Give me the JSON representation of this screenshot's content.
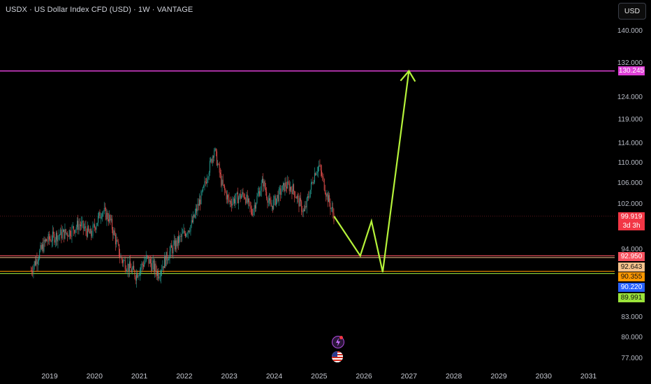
{
  "header": {
    "title": "USDX · US Dollar Index CFD (USD) · 1W · VANTAGE",
    "currency_button": "USD"
  },
  "price_axis": {
    "ticks": [
      "140.000",
      "132.000",
      "124.000",
      "119.000",
      "114.000",
      "110.000",
      "106.000",
      "102.000",
      "94.000",
      "83.000",
      "80.000",
      "77.000"
    ]
  },
  "time_axis": {
    "ticks": [
      "2019",
      "2020",
      "2021",
      "2022",
      "2023",
      "2024",
      "2025",
      "2026",
      "2027",
      "2028",
      "2029",
      "2030",
      "2031"
    ]
  },
  "price_labels": {
    "target": "130.245",
    "current": "99.919",
    "countdown": "3d 3h",
    "level_1": "92.950",
    "level_2": "92.643",
    "level_3": "90.355",
    "level_4": "90.220",
    "level_5": "89.991"
  },
  "colors": {
    "target_line": "#e040d8",
    "current_price": "#f23645",
    "level_1": "#f7525f",
    "level_2": "#f5c28c",
    "level_3": "#ff9800",
    "level_4": "#2962ff",
    "level_5": "#9be33a",
    "projection": "#b5f23a",
    "candle_up": "#26a69a",
    "candle_down": "#ef5350"
  },
  "events": {
    "icons": [
      "lightning-icon",
      "us-flag-icon"
    ]
  },
  "chart_data": {
    "type": "candlestick",
    "symbol": "USDX",
    "interval": "1W",
    "y_scale": "log",
    "ylim": [
      75,
      145
    ],
    "close_series_approx": {
      "x": [
        "2018-08",
        "2018-12",
        "2019-03",
        "2019-06",
        "2019-09",
        "2019-12",
        "2020-03",
        "2020-05",
        "2020-08",
        "2020-12",
        "2021-03",
        "2021-06",
        "2021-09",
        "2021-12",
        "2022-03",
        "2022-06",
        "2022-09",
        "2022-11",
        "2023-01",
        "2023-05",
        "2023-07",
        "2023-10",
        "2023-12",
        "2024-04",
        "2024-06",
        "2024-09",
        "2024-12",
        "2025-01",
        "2025-03",
        "2025-05"
      ],
      "y": [
        90.5,
        95.5,
        96.5,
        97.0,
        98.5,
        96.5,
        101.0,
        99.5,
        92.5,
        89.8,
        92.5,
        90.0,
        93.5,
        96.0,
        98.5,
        104.5,
        113.0,
        106.0,
        102.5,
        104.0,
        100.5,
        106.5,
        101.5,
        105.8,
        105.0,
        100.5,
        108.5,
        109.5,
        104.0,
        99.9
      ]
    },
    "horizontal_levels": [
      130.245,
      92.95,
      92.643,
      90.355,
      90.22,
      89.991
    ],
    "last_price": 99.919,
    "projection_path": {
      "x": [
        "2025-05",
        "2025-12",
        "2026-03",
        "2026-06",
        "2027-01"
      ],
      "y": [
        99.9,
        92.95,
        99.0,
        90.22,
        130.245
      ]
    }
  }
}
